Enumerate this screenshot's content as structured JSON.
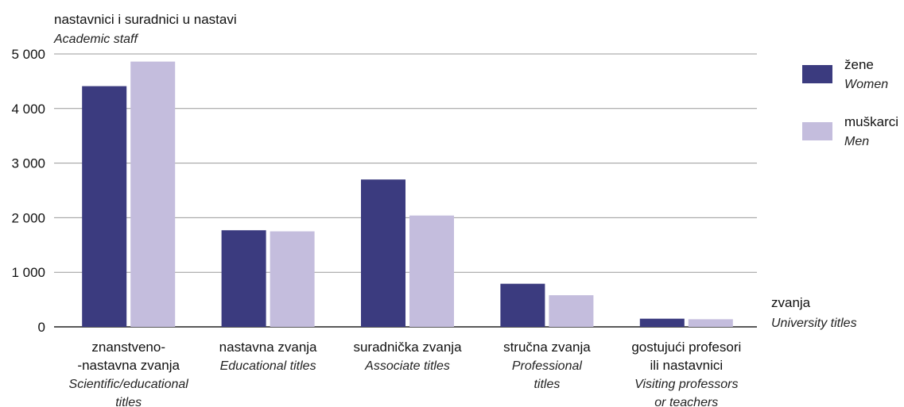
{
  "chart_data": {
    "type": "bar",
    "title": "nastavnici i suradnici u nastavi",
    "subtitle": "Academic staff",
    "xlabel": "zvanja",
    "xlabel_en": "University titles",
    "ylim": [
      0,
      5000
    ],
    "yticks": [
      0,
      1000,
      2000,
      3000,
      4000,
      5000
    ],
    "ytick_labels": [
      "0",
      "1 000",
      "2 000",
      "3 000",
      "4 000",
      "5 000"
    ],
    "grid": true,
    "legend_position": "top-right",
    "categories": [
      {
        "label": [
          "znanstveno-",
          "-nastavna zvanja"
        ],
        "label_en": [
          "Scientific/educational",
          "titles"
        ]
      },
      {
        "label": [
          "nastavna zvanja"
        ],
        "label_en": [
          "Educational titles"
        ]
      },
      {
        "label": [
          "suradnička zvanja"
        ],
        "label_en": [
          "Associate titles"
        ]
      },
      {
        "label": [
          "stručna zvanja"
        ],
        "label_en": [
          "Professional",
          "titles"
        ]
      },
      {
        "label": [
          "gostujući profesori",
          "ili nastavnici"
        ],
        "label_en": [
          "Visiting professors",
          "or teachers"
        ]
      }
    ],
    "series": [
      {
        "name": "žene",
        "name_en": "Women",
        "color": "#3b3b7f",
        "values": [
          4410,
          1770,
          2700,
          790,
          150
        ]
      },
      {
        "name": "muškarci",
        "name_en": "Men",
        "color": "#c4bddd",
        "values": [
          4860,
          1750,
          2040,
          580,
          140
        ]
      }
    ]
  }
}
